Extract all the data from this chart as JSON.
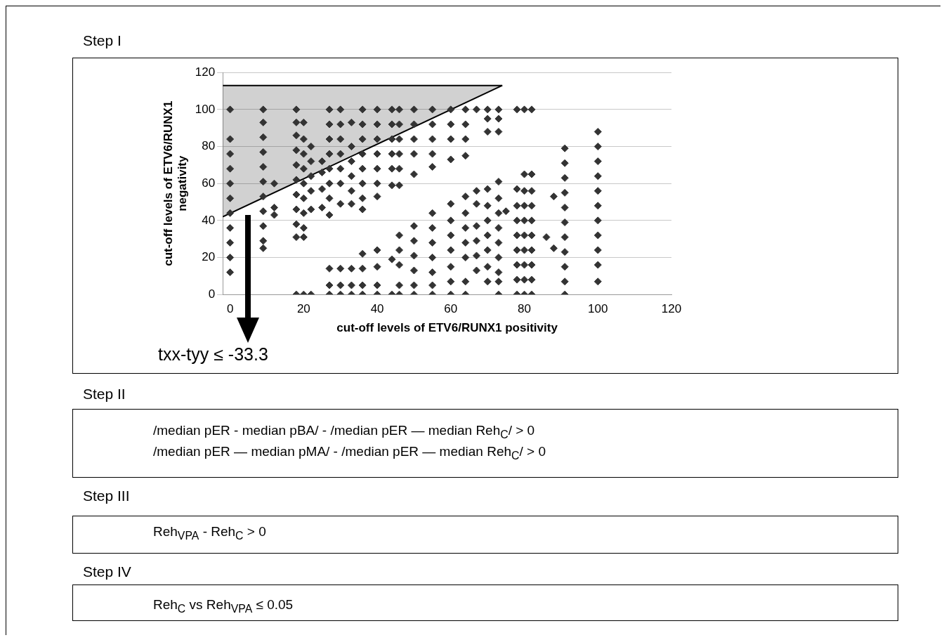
{
  "chart_data": {
    "type": "scatter",
    "xlabel": "cut-off levels of ETV6/RUNX1 positivity",
    "ylabel": "cut-off levels of ETV6/RUNX1 negativity",
    "xlim": [
      -2,
      120
    ],
    "xticks": [
      0,
      20,
      40,
      60,
      80,
      100,
      120
    ],
    "ylim": [
      0,
      120
    ],
    "yticks": [
      0,
      20,
      40,
      60,
      80,
      100,
      120
    ],
    "grid": "y",
    "legend": false,
    "marker": "diamond",
    "series": [
      {
        "color": "#333333",
        "x": [
          0,
          0,
          0,
          0,
          0,
          0,
          0,
          0,
          0,
          0,
          0,
          9,
          9,
          9,
          9,
          9,
          9,
          9,
          9,
          9,
          9,
          9,
          12,
          12,
          12,
          18,
          18,
          18,
          18,
          18,
          18,
          18,
          18,
          18,
          18,
          18,
          20,
          20,
          20,
          20,
          20,
          20,
          20,
          20,
          20,
          20,
          22,
          22,
          22,
          22,
          22,
          22,
          25,
          25,
          25,
          25,
          27,
          27,
          27,
          27,
          27,
          27,
          27,
          27,
          27,
          27,
          27,
          30,
          30,
          30,
          30,
          30,
          30,
          30,
          30,
          30,
          30,
          33,
          33,
          33,
          33,
          33,
          33,
          33,
          33,
          33,
          36,
          36,
          36,
          36,
          36,
          36,
          36,
          36,
          36,
          36,
          36,
          36,
          40,
          40,
          40,
          40,
          40,
          40,
          40,
          40,
          40,
          40,
          40,
          44,
          44,
          44,
          44,
          44,
          44,
          44,
          44,
          46,
          46,
          46,
          46,
          46,
          46,
          46,
          46,
          46,
          46,
          46,
          50,
          50,
          50,
          50,
          50,
          50,
          50,
          50,
          50,
          50,
          50,
          55,
          55,
          55,
          55,
          55,
          55,
          55,
          55,
          55,
          55,
          55,
          55,
          60,
          60,
          60,
          60,
          60,
          60,
          60,
          60,
          60,
          60,
          60,
          64,
          64,
          64,
          64,
          64,
          64,
          64,
          64,
          64,
          64,
          64,
          67,
          67,
          67,
          67,
          67,
          67,
          67,
          70,
          70,
          70,
          70,
          70,
          70,
          70,
          70,
          70,
          70,
          73,
          73,
          73,
          73,
          73,
          73,
          73,
          73,
          73,
          73,
          73,
          73,
          75,
          78,
          78,
          78,
          78,
          78,
          78,
          78,
          78,
          78,
          80,
          80,
          80,
          80,
          80,
          80,
          80,
          80,
          80,
          80,
          82,
          82,
          82,
          82,
          82,
          82,
          82,
          82,
          82,
          82,
          86,
          88,
          88,
          91,
          91,
          91,
          91,
          91,
          91,
          91,
          91,
          91,
          91,
          91,
          100,
          100,
          100,
          100,
          100,
          100,
          100,
          100,
          100,
          100,
          100
        ],
        "values": [
          100,
          84,
          76,
          68,
          60,
          52,
          44,
          36,
          28,
          20,
          12,
          100,
          93,
          85,
          77,
          69,
          61,
          53,
          45,
          37,
          29,
          25,
          60,
          47,
          43,
          100,
          93,
          86,
          78,
          70,
          62,
          54,
          46,
          38,
          31,
          0,
          93,
          84,
          76,
          68,
          60,
          52,
          44,
          36,
          31,
          0,
          80,
          72,
          64,
          56,
          46,
          0,
          72,
          66,
          57,
          47,
          100,
          92,
          84,
          76,
          68,
          60,
          52,
          43,
          14,
          5,
          0,
          100,
          92,
          84,
          76,
          68,
          60,
          49,
          14,
          5,
          0,
          93,
          80,
          72,
          64,
          56,
          49,
          14,
          5,
          0,
          100,
          92,
          84,
          76,
          68,
          60,
          52,
          46,
          22,
          14,
          5,
          0,
          100,
          92,
          84,
          76,
          68,
          60,
          53,
          24,
          15,
          5,
          0,
          100,
          92,
          84,
          76,
          68,
          59,
          19,
          0,
          100,
          92,
          84,
          76,
          68,
          59,
          32,
          24,
          16,
          5,
          0,
          100,
          92,
          84,
          76,
          65,
          37,
          29,
          21,
          13,
          5,
          0,
          100,
          92,
          84,
          76,
          69,
          44,
          36,
          28,
          20,
          12,
          5,
          0,
          100,
          92,
          84,
          73,
          49,
          40,
          32,
          24,
          15,
          7,
          0,
          100,
          92,
          84,
          75,
          53,
          44,
          36,
          28,
          20,
          7,
          0,
          100,
          56,
          49,
          37,
          29,
          21,
          13,
          100,
          95,
          88,
          57,
          48,
          40,
          32,
          24,
          15,
          7,
          100,
          95,
          88,
          61,
          52,
          44,
          36,
          28,
          20,
          12,
          7,
          0,
          45,
          100,
          57,
          48,
          40,
          32,
          24,
          16,
          8,
          0,
          100,
          65,
          56,
          48,
          40,
          32,
          24,
          16,
          8,
          0,
          100,
          65,
          56,
          48,
          40,
          32,
          24,
          16,
          8,
          0,
          31,
          53,
          25,
          79,
          71,
          63,
          55,
          47,
          39,
          31,
          23,
          15,
          7,
          0,
          88,
          80,
          72,
          64,
          56,
          48,
          40,
          32,
          24,
          16,
          7
        ]
      },
      {
        "type": "line",
        "color": "#000000",
        "marker": "none",
        "x": [
          -2,
          74
        ],
        "values": [
          42,
          113
        ],
        "lower": [
          42,
          113
        ],
        "upper": [
          113,
          113
        ]
      },
      {
        "type": "line",
        "color": "#000000",
        "marker": "none",
        "x": [
          -2,
          74
        ],
        "values": [
          113,
          113
        ]
      }
    ],
    "annotations": [
      "Step I",
      "txx-tyy ≤ -33.3",
      "Step II",
      "/median pER - median pBA/ - /median pER — median Reh$_{C}$/ > 0",
      "/median pER — median pMA/ - /median pER — median Reh$_{C}$/ > 0",
      "Step III",
      "Reh$_{VPA}$ - Reh$_{C}$ > 0",
      "Step IV",
      "Reh$_{C}$ vs Reh$_{VPA}$ ≤ 0.05"
    ]
  }
}
